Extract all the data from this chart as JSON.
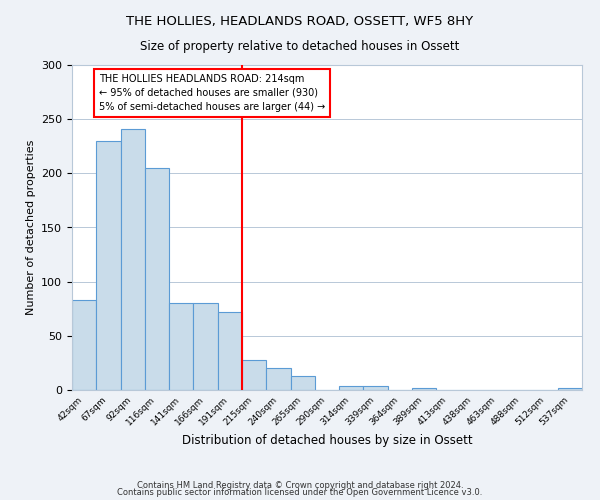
{
  "title": "THE HOLLIES, HEADLANDS ROAD, OSSETT, WF5 8HY",
  "subtitle": "Size of property relative to detached houses in Ossett",
  "xlabel": "Distribution of detached houses by size in Ossett",
  "ylabel": "Number of detached properties",
  "bin_labels": [
    "42sqm",
    "67sqm",
    "92sqm",
    "116sqm",
    "141sqm",
    "166sqm",
    "191sqm",
    "215sqm",
    "240sqm",
    "265sqm",
    "290sqm",
    "314sqm",
    "339sqm",
    "364sqm",
    "389sqm",
    "413sqm",
    "438sqm",
    "463sqm",
    "488sqm",
    "512sqm",
    "537sqm"
  ],
  "bar_heights": [
    83,
    230,
    241,
    205,
    80,
    80,
    72,
    28,
    20,
    13,
    0,
    4,
    4,
    0,
    2,
    0,
    0,
    0,
    0,
    0,
    2
  ],
  "bar_color": "#c9dcea",
  "bar_edge_color": "#5b9bd5",
  "vline_x": 7.0,
  "vline_color": "red",
  "annotation_text": "THE HOLLIES HEADLANDS ROAD: 214sqm\n← 95% of detached houses are smaller (930)\n5% of semi-detached houses are larger (44) →",
  "annotation_box_color": "white",
  "annotation_box_edge": "red",
  "ylim": [
    0,
    300
  ],
  "yticks": [
    0,
    50,
    100,
    150,
    200,
    250,
    300
  ],
  "footer1": "Contains HM Land Registry data © Crown copyright and database right 2024.",
  "footer2": "Contains public sector information licensed under the Open Government Licence v3.0.",
  "bg_color": "#eef2f7",
  "plot_bg_color": "#ffffff",
  "grid_color": "#b8c8d8"
}
